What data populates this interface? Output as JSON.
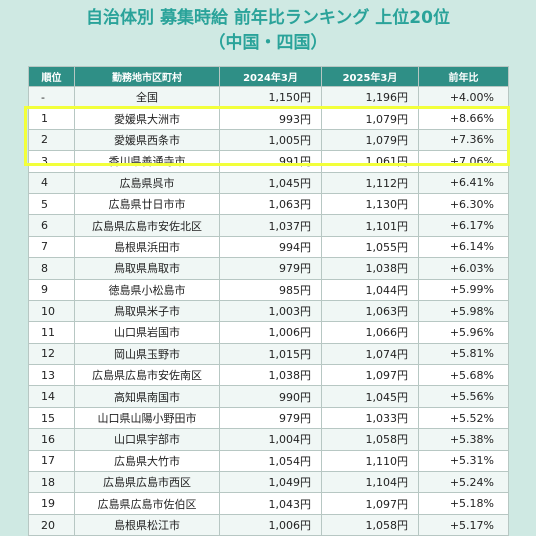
{
  "title_line1": "自治体別 募集時給 前年比ランキング 上位20位",
  "title_line2": "（中国・四国）",
  "headers": [
    "順位",
    "勤務地市区町村",
    "2024年3月",
    "2025年3月",
    "前年比"
  ],
  "rows": [
    [
      "-",
      "全国",
      "1,150円",
      "1,196円",
      "+4.00%"
    ],
    [
      "1",
      "愛媛県大洲市",
      "993円",
      "1,079円",
      "+8.66%"
    ],
    [
      "2",
      "愛媛県西条市",
      "1,005円",
      "1,079円",
      "+7.36%"
    ],
    [
      "3",
      "香川県善通寺市",
      "991円",
      "1,061円",
      "+7.06%"
    ],
    [
      "4",
      "広島県呉市",
      "1,045円",
      "1,112円",
      "+6.41%"
    ],
    [
      "5",
      "広島県廿日市市",
      "1,063円",
      "1,130円",
      "+6.30%"
    ],
    [
      "6",
      "広島県広島市安佐北区",
      "1,037円",
      "1,101円",
      "+6.17%"
    ],
    [
      "7",
      "島根県浜田市",
      "994円",
      "1,055円",
      "+6.14%"
    ],
    [
      "8",
      "鳥取県鳥取市",
      "979円",
      "1,038円",
      "+6.03%"
    ],
    [
      "9",
      "徳島県小松島市",
      "985円",
      "1,044円",
      "+5.99%"
    ],
    [
      "10",
      "鳥取県米子市",
      "1,003円",
      "1,063円",
      "+5.98%"
    ],
    [
      "11",
      "山口県岩国市",
      "1,006円",
      "1,066円",
      "+5.96%"
    ],
    [
      "12",
      "岡山県玉野市",
      "1,015円",
      "1,074円",
      "+5.81%"
    ],
    [
      "13",
      "広島県広島市安佐南区",
      "1,038円",
      "1,097円",
      "+5.68%"
    ],
    [
      "14",
      "高知県南国市",
      "990円",
      "1,045円",
      "+5.56%"
    ],
    [
      "15",
      "山口県山陽小野田市",
      "979円",
      "1,033円",
      "+5.52%"
    ],
    [
      "16",
      "山口県宇部市",
      "1,004円",
      "1,058円",
      "+5.38%"
    ],
    [
      "17",
      "広島県大竹市",
      "1,054円",
      "1,110円",
      "+5.31%"
    ],
    [
      "18",
      "広島県広島市西区",
      "1,049円",
      "1,104円",
      "+5.24%"
    ],
    [
      "19",
      "広島県広島市佐伯区",
      "1,043円",
      "1,097円",
      "+5.18%"
    ],
    [
      "20",
      "島根県松江市",
      "1,006円",
      "1,058円",
      "+5.17%"
    ]
  ],
  "highlight_color": "#f2ff3a",
  "header_color": "#2f8f86",
  "title_color": "#2aa39a",
  "background_color": "#cfe9e3"
}
